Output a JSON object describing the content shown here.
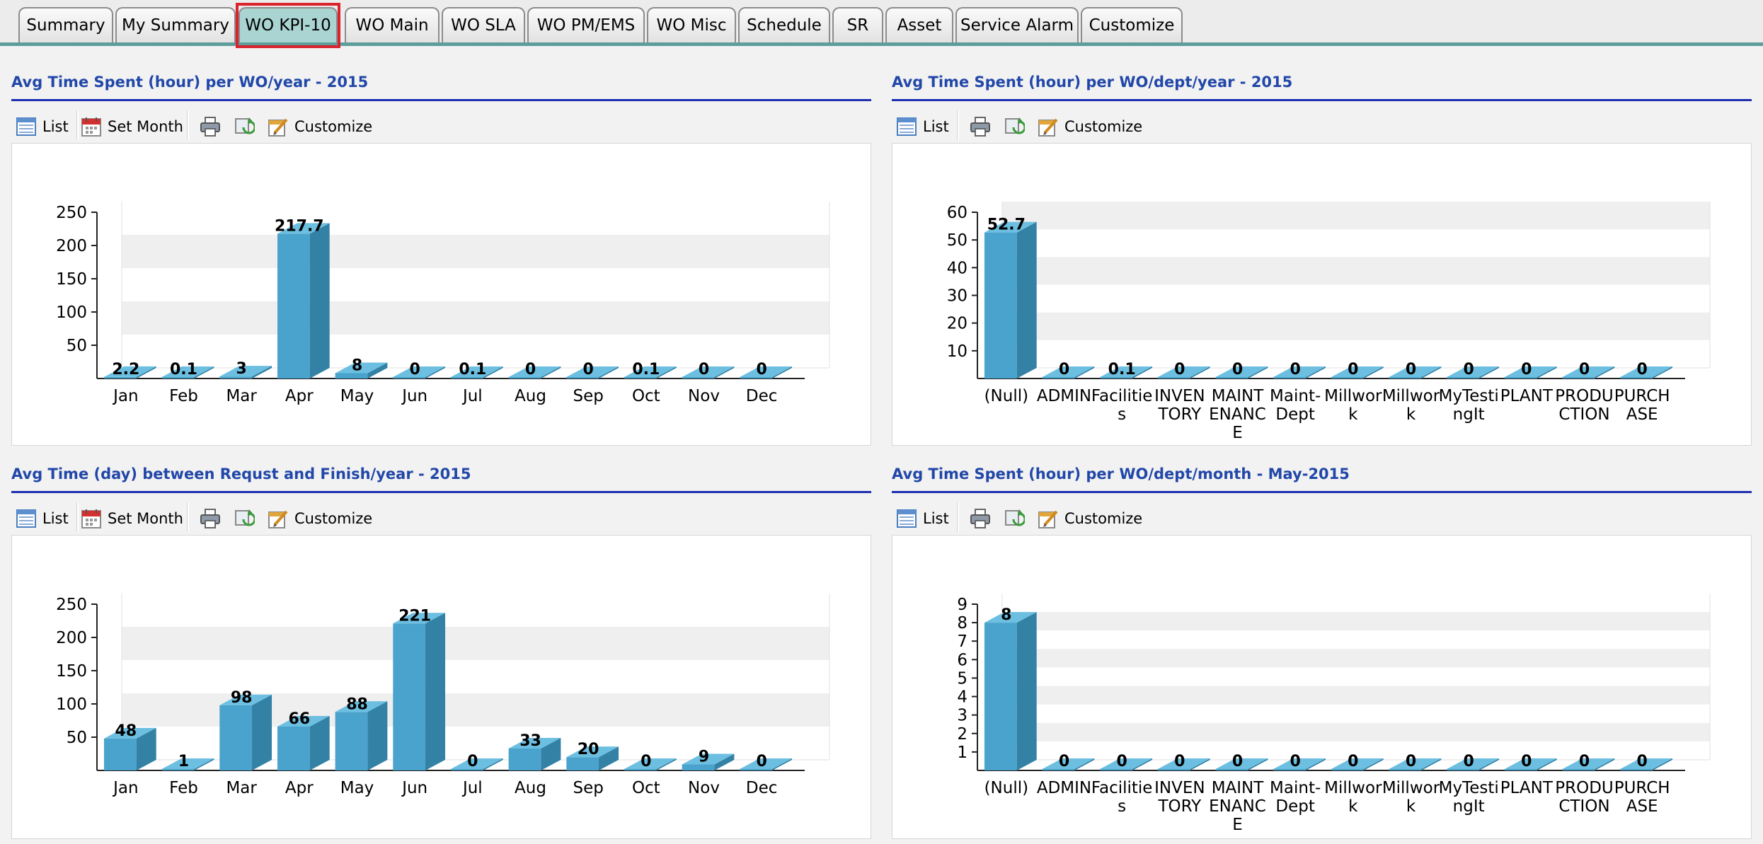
{
  "tabs": [
    {
      "label": "Summary",
      "active": false
    },
    {
      "label": "My Summary",
      "active": false
    },
    {
      "label": "WO KPI-10",
      "active": true
    },
    {
      "label": "WO Main",
      "active": false
    },
    {
      "label": "WO SLA",
      "active": false
    },
    {
      "label": "WO PM/EMS",
      "active": false
    },
    {
      "label": "WO Misc",
      "active": false
    },
    {
      "label": "Schedule",
      "active": false
    },
    {
      "label": "SR",
      "active": false
    },
    {
      "label": "Asset",
      "active": false
    },
    {
      "label": "Service Alarm",
      "active": false
    },
    {
      "label": "Customize",
      "active": false
    }
  ],
  "toolbar": {
    "list_label": "List",
    "set_month_label": "Set Month",
    "customize_label": "Customize",
    "icons": [
      "list-icon",
      "calendar-icon",
      "print-icon",
      "refresh-icon",
      "customize-icon"
    ]
  },
  "panels": [
    {
      "title": "Avg Time Spent (hour) per WO/year - 2015",
      "has_set_month": true
    },
    {
      "title": "Avg Time Spent (hour) per WO/dept/year - 2015",
      "has_set_month": false
    },
    {
      "title": "Avg Time (day) between Requst and Finish/year - 2015",
      "has_set_month": true
    },
    {
      "title": "Avg Time Spent (hour) per WO/dept/month - May-2015",
      "has_set_month": false
    }
  ],
  "colors": {
    "bar_front": "#4aa3cc",
    "bar_side": "#3481a6",
    "bar_top": "#6cbfe0",
    "title": "#2147a8",
    "tab_active": "#a9d4d2",
    "highlight": "#d9232d"
  },
  "chart_data": [
    {
      "type": "bar",
      "categories": [
        "Jan",
        "Feb",
        "Mar",
        "Apr",
        "May",
        "Jun",
        "Jul",
        "Aug",
        "Sep",
        "Oct",
        "Nov",
        "Dec"
      ],
      "values": [
        2.2,
        0.1,
        3,
        217.7,
        8,
        0,
        0.1,
        0,
        0,
        0.1,
        0,
        0
      ],
      "value_labels": [
        "2.2",
        "0.1",
        "3",
        "217.7",
        "8",
        "0",
        "0.1",
        "0",
        "0",
        "0.1",
        "0",
        "0"
      ],
      "yticks": [
        "50",
        "100",
        "150",
        "200",
        "250"
      ],
      "ylim": [
        0,
        250
      ],
      "grid": true,
      "style": "3d"
    },
    {
      "type": "bar",
      "categories": [
        "(Null)",
        "ADMIN",
        "Facilities",
        "INVENTORY",
        "MAINTENANCE",
        "Maint-Dept",
        "Millwork",
        "Millwork",
        "MyTestingIt",
        "PLANT",
        "PRODUCTION",
        "PURCHASE"
      ],
      "category_lines": [
        [
          "(Null)"
        ],
        [
          "ADMIN"
        ],
        [
          "Facilitie",
          "s"
        ],
        [
          "INVEN",
          "TORY"
        ],
        [
          "MAINT",
          "ENANC",
          "E"
        ],
        [
          "Maint-",
          "Dept"
        ],
        [
          "Millwor",
          "k"
        ],
        [
          "Millwor",
          "k"
        ],
        [
          "MyTesti",
          "ngIt"
        ],
        [
          "PLANT"
        ],
        [
          "PRODU",
          "CTION"
        ],
        [
          "PURCH",
          "ASE"
        ]
      ],
      "values": [
        52.7,
        0,
        0.1,
        0,
        0,
        0,
        0,
        0,
        0,
        0,
        0,
        0
      ],
      "value_labels": [
        "52.7",
        "0",
        "0.1",
        "0",
        "0",
        "0",
        "0",
        "0",
        "0",
        "0",
        "0",
        "0"
      ],
      "yticks": [
        "10",
        "20",
        "30",
        "40",
        "50",
        "60"
      ],
      "ylim": [
        0,
        60
      ],
      "grid": true,
      "style": "3d"
    },
    {
      "type": "bar",
      "categories": [
        "Jan",
        "Feb",
        "Mar",
        "Apr",
        "May",
        "Jun",
        "Jul",
        "Aug",
        "Sep",
        "Oct",
        "Nov",
        "Dec"
      ],
      "values": [
        48,
        1,
        98,
        66,
        88,
        221,
        0,
        33,
        20,
        0,
        9,
        0
      ],
      "value_labels": [
        "48",
        "1",
        "98",
        "66",
        "88",
        "221",
        "0",
        "33",
        "20",
        "0",
        "9",
        "0"
      ],
      "yticks": [
        "50",
        "100",
        "150",
        "200",
        "250"
      ],
      "ylim": [
        0,
        250
      ],
      "grid": true,
      "style": "3d"
    },
    {
      "type": "bar",
      "categories": [
        "(Null)",
        "ADMIN",
        "Facilities",
        "INVENTORY",
        "MAINTENANCE",
        "Maint-Dept",
        "Millwork",
        "Millwork",
        "MyTestingIt",
        "PLANT",
        "PRODUCTION",
        "PURCHASE"
      ],
      "category_lines": [
        [
          "(Null)"
        ],
        [
          "ADMIN"
        ],
        [
          "Facilitie",
          "s"
        ],
        [
          "INVEN",
          "TORY"
        ],
        [
          "MAINT",
          "ENANC",
          "E"
        ],
        [
          "Maint-",
          "Dept"
        ],
        [
          "Millwor",
          "k"
        ],
        [
          "Millwor",
          "k"
        ],
        [
          "MyTesti",
          "ngIt"
        ],
        [
          "PLANT"
        ],
        [
          "PRODU",
          "CTION"
        ],
        [
          "PURCH",
          "ASE"
        ]
      ],
      "values": [
        8,
        0,
        0,
        0,
        0,
        0,
        0,
        0,
        0,
        0,
        0,
        0
      ],
      "value_labels": [
        "8",
        "0",
        "0",
        "0",
        "0",
        "0",
        "0",
        "0",
        "0",
        "0",
        "0",
        "0"
      ],
      "yticks": [
        "1",
        "2",
        "3",
        "4",
        "5",
        "6",
        "7",
        "8",
        "9"
      ],
      "ylim": [
        0,
        9
      ],
      "grid": true,
      "style": "3d"
    }
  ]
}
